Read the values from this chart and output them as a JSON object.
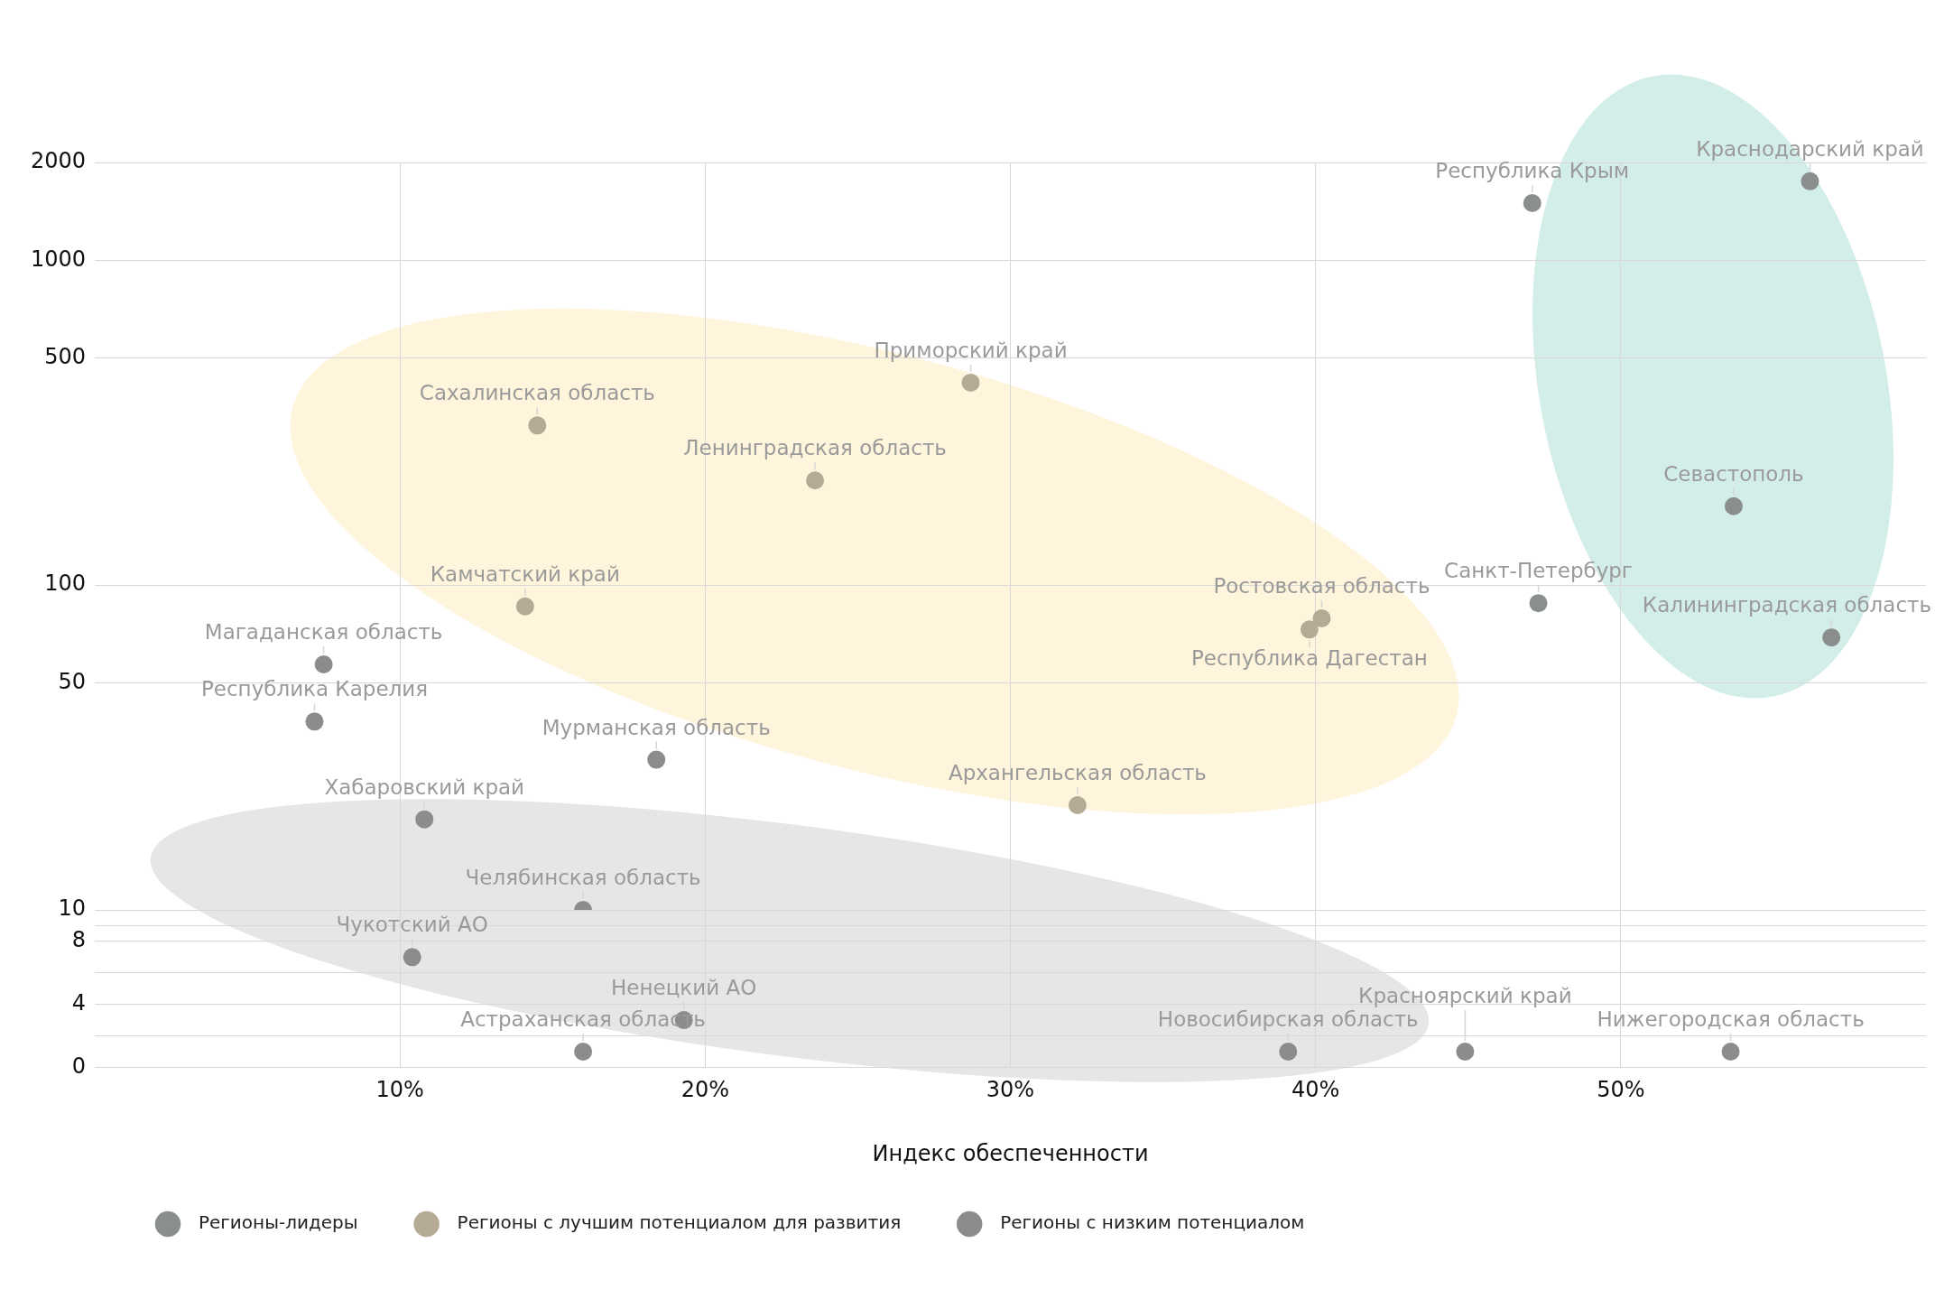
{
  "chart_data": [
    {
      "type": "scatter",
      "xlim": [
        0,
        60
      ],
      "xticks": [
        {
          "value": 10,
          "label": null
        },
        {
          "value": 20,
          "label": null
        },
        {
          "value": 30,
          "label": null
        },
        {
          "value": 40,
          "label": null
        },
        {
          "value": 50,
          "label": null
        }
      ],
      "ylim": [
        10,
        2000
      ],
      "yticks": [
        10,
        50,
        100,
        500,
        1000,
        2000
      ],
      "log": "y",
      "grid": true,
      "legend": "bottom left",
      "marker": "circle",
      "tick_labels": "y",
      "series": [
        {
          "name": "Регионы-лидеры",
          "color": "#8a8f8e",
          "x": [
            47.1,
            56.2,
            53.7,
            56.9,
            47.3
          ],
          "values": [
            1500,
            1750,
            175,
            69,
            88
          ]
        },
        {
          "name": "Регионы с лучшим потенциалом для развития",
          "color": "#b5ab95",
          "x": [
            14.5,
            28.7,
            23.6,
            14.1,
            40.2,
            39.8,
            32.2
          ],
          "values": [
            310,
            420,
            210,
            86,
            79,
            73,
            21
          ]
        },
        {
          "name": "Регионы с низким потенциалом",
          "color": "#8c8c8c",
          "x": [
            7.5,
            7.2,
            18.4,
            10.8,
            16.0
          ],
          "values": [
            57,
            38,
            29,
            19,
            10
          ]
        }
      ],
      "annotations": [
        {
          "text": "Республика Крым",
          "x": 47.1,
          "y": 1500
        },
        {
          "text": "Краснодарский край",
          "x": 56.2,
          "y": 1750
        },
        {
          "text": "Севастополь",
          "x": 53.7,
          "y": 175
        },
        {
          "text": "Калининградская область",
          "x": 56.9,
          "y": 69
        },
        {
          "text": "Санкт-Петербург",
          "x": 47.3,
          "y": 88
        },
        {
          "text": "Сахалинская область",
          "x": 14.5,
          "y": 310
        },
        {
          "text": "Приморский край",
          "x": 28.7,
          "y": 420
        },
        {
          "text": "Ленинградская область",
          "x": 23.6,
          "y": 210
        },
        {
          "text": "Камчатский край",
          "x": 14.1,
          "y": 86
        },
        {
          "text": "Ростовская область",
          "x": 40.2,
          "y": 79
        },
        {
          "text": "Республика Дагестан",
          "x": 39.8,
          "y": 73
        },
        {
          "text": "Архангельская область",
          "x": 32.2,
          "y": 21
        },
        {
          "text": "Магаданская область",
          "x": 7.5,
          "y": 57
        },
        {
          "text": "Республика Карелия",
          "x": 7.2,
          "y": 38
        },
        {
          "text": "Мурманская область",
          "x": 18.4,
          "y": 29
        },
        {
          "text": "Хабаровский край",
          "x": 10.8,
          "y": 19
        },
        {
          "text": "Челябинская область",
          "x": 16.0,
          "y": 10
        }
      ]
    },
    {
      "type": "scatter",
      "xlabel": "Индекс обеспеченности",
      "xlim": [
        0,
        60
      ],
      "xticks": [
        {
          "value": 10,
          "label": "10%"
        },
        {
          "value": 20,
          "label": "20%"
        },
        {
          "value": 30,
          "label": "30%"
        },
        {
          "value": 40,
          "label": "40%"
        },
        {
          "value": 50,
          "label": "50%"
        }
      ],
      "ylim": [
        0,
        10
      ],
      "yticks": [
        0,
        {
          "value": 2,
          "label": null
        },
        4,
        {
          "value": 6,
          "label": null
        },
        8,
        {
          "value": 9,
          "label": null
        }
      ],
      "grid": true,
      "marker": "circle",
      "series": [
        {
          "color": "#8c8c8c",
          "x": [
            10.4,
            19.3,
            16.0,
            39.1,
            44.9,
            53.6
          ],
          "values": [
            7,
            3,
            1,
            1,
            1,
            1
          ]
        }
      ],
      "annotations": [
        {
          "text": "Чукотский АО",
          "x": 10.4,
          "y": 7
        },
        {
          "text": "Ненецкий АО",
          "x": 19.3,
          "y": 3
        },
        {
          "text": "Астраханская область",
          "x": 16.0,
          "y": 1
        },
        {
          "text": "Новосибирская область",
          "x": 39.1,
          "y": 1
        },
        {
          "text": "Красноярский край",
          "x": 44.9,
          "y": 1
        },
        {
          "text": "Нижегородская область",
          "x": 53.6,
          "y": 1
        }
      ]
    }
  ]
}
